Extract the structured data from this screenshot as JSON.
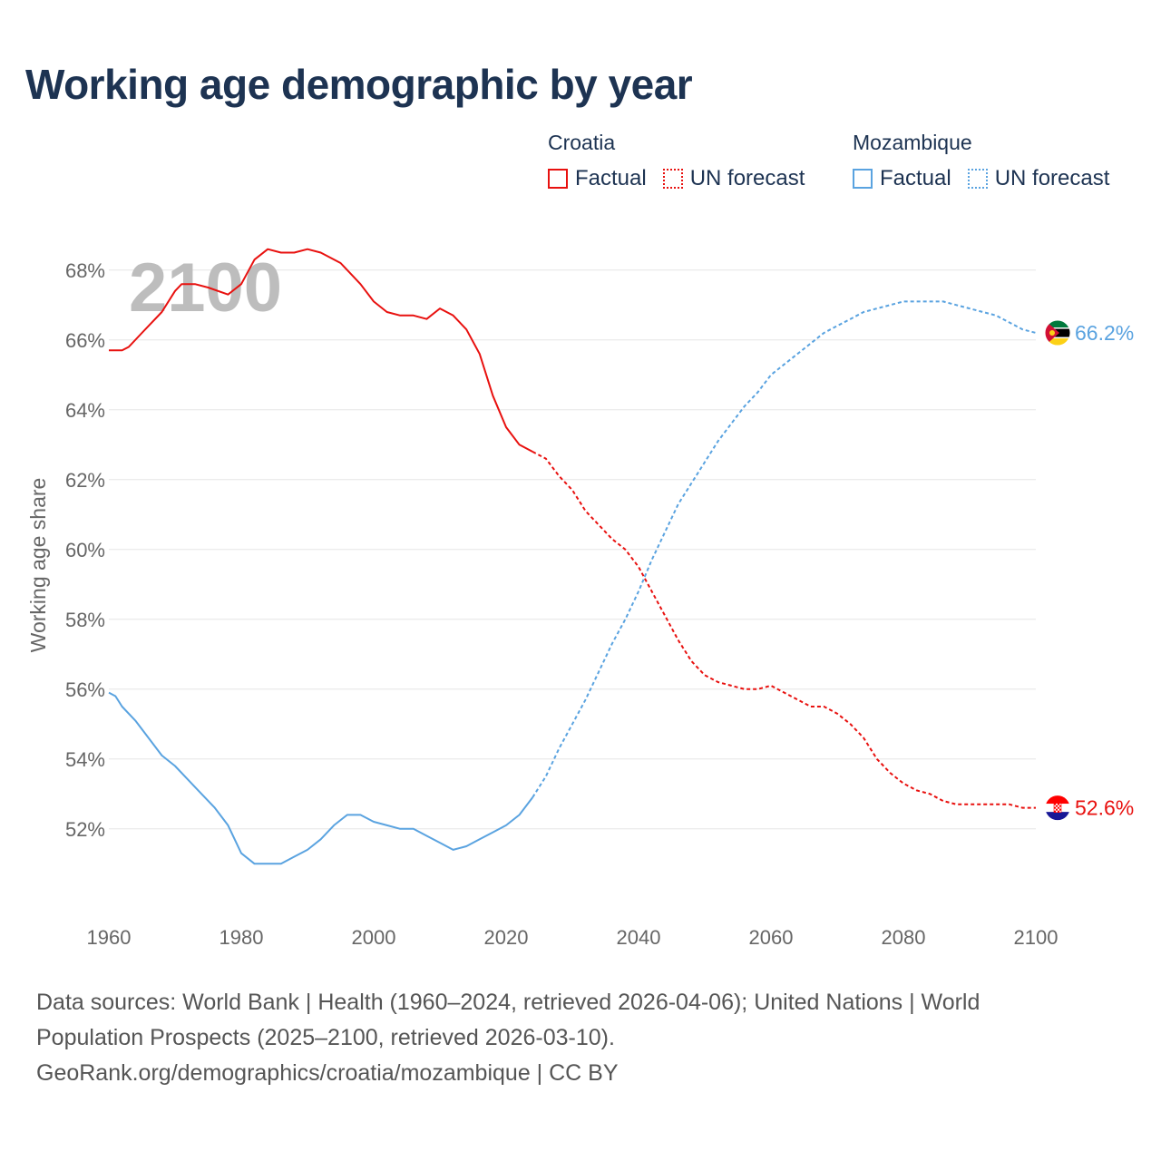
{
  "title": "Working age demographic by year",
  "legend": {
    "groups": [
      {
        "name": "Croatia",
        "factual": "Factual",
        "forecast": "UN forecast"
      },
      {
        "name": "Mozambique",
        "factual": "Factual",
        "forecast": "UN forecast"
      }
    ]
  },
  "year_label": "2100",
  "end_labels": {
    "mozambique": "66.2%",
    "croatia": "52.6%"
  },
  "colors": {
    "croatia": "#e8110f",
    "mozambique": "#5aa3e0",
    "title": "#1d3352"
  },
  "footer": {
    "line1": "Data sources: World Bank | Health (1960–2024, retrieved 2026-04-06); United Nations | World",
    "line2": "Population Prospects (2025–2100, retrieved 2026-03-10).",
    "line3": "GeoRank.org/demographics/croatia/mozambique | CC BY"
  },
  "chart_data": {
    "type": "line",
    "title": "Working age demographic by year",
    "xlabel": "",
    "ylabel": "Working age share",
    "xlim": [
      1960,
      2100
    ],
    "ylim": [
      49.5,
      69.5
    ],
    "x_ticks": [
      1960,
      1980,
      2000,
      2020,
      2040,
      2060,
      2080,
      2100
    ],
    "y_ticks": [
      52,
      54,
      56,
      58,
      60,
      62,
      64,
      66,
      68
    ],
    "series": [
      {
        "name": "Croatia",
        "segment": "Factual",
        "x": [
          1960,
          1962,
          1963,
          1965,
          1968,
          1970,
          1971,
          1973,
          1975,
          1978,
          1980,
          1982,
          1984,
          1986,
          1988,
          1990,
          1992,
          1995,
          1998,
          2000,
          2002,
          2004,
          2006,
          2008,
          2010,
          2012,
          2014,
          2016,
          2018,
          2020,
          2022,
          2024
        ],
        "y": [
          65.7,
          65.7,
          65.8,
          66.2,
          66.8,
          67.4,
          67.6,
          67.6,
          67.5,
          67.3,
          67.6,
          68.3,
          68.6,
          68.5,
          68.5,
          68.6,
          68.5,
          68.2,
          67.6,
          67.1,
          66.8,
          66.7,
          66.7,
          66.6,
          66.9,
          66.7,
          66.3,
          65.6,
          64.4,
          63.5,
          63.0,
          62.8
        ]
      },
      {
        "name": "Croatia",
        "segment": "UN forecast",
        "x": [
          2024,
          2026,
          2028,
          2030,
          2032,
          2034,
          2036,
          2038,
          2040,
          2042,
          2044,
          2046,
          2048,
          2050,
          2052,
          2054,
          2056,
          2058,
          2060,
          2062,
          2064,
          2066,
          2068,
          2070,
          2072,
          2074,
          2076,
          2078,
          2080,
          2082,
          2084,
          2086,
          2088,
          2090,
          2092,
          2094,
          2096,
          2098,
          2100
        ],
        "y": [
          62.8,
          62.6,
          62.1,
          61.7,
          61.1,
          60.7,
          60.3,
          60.0,
          59.5,
          58.8,
          58.1,
          57.4,
          56.8,
          56.4,
          56.2,
          56.1,
          56.0,
          56.0,
          56.1,
          55.9,
          55.7,
          55.5,
          55.5,
          55.3,
          55.0,
          54.6,
          54.0,
          53.6,
          53.3,
          53.1,
          53.0,
          52.8,
          52.7,
          52.7,
          52.7,
          52.7,
          52.7,
          52.6,
          52.6
        ]
      },
      {
        "name": "Mozambique",
        "segment": "Factual",
        "x": [
          1960,
          1961,
          1962,
          1964,
          1966,
          1968,
          1970,
          1972,
          1974,
          1976,
          1978,
          1980,
          1982,
          1984,
          1986,
          1988,
          1990,
          1992,
          1994,
          1996,
          1998,
          2000,
          2002,
          2004,
          2006,
          2008,
          2010,
          2012,
          2014,
          2016,
          2018,
          2020,
          2022,
          2024
        ],
        "y": [
          55.9,
          55.8,
          55.5,
          55.1,
          54.6,
          54.1,
          53.8,
          53.4,
          53.0,
          52.6,
          52.1,
          51.3,
          51.0,
          51.0,
          51.0,
          51.2,
          51.4,
          51.7,
          52.1,
          52.4,
          52.4,
          52.2,
          52.1,
          52.0,
          52.0,
          51.8,
          51.6,
          51.4,
          51.5,
          51.7,
          51.9,
          52.1,
          52.4,
          52.9
        ]
      },
      {
        "name": "Mozambique",
        "segment": "UN forecast",
        "x": [
          2024,
          2026,
          2028,
          2030,
          2032,
          2034,
          2036,
          2038,
          2040,
          2042,
          2044,
          2046,
          2048,
          2050,
          2052,
          2054,
          2056,
          2058,
          2060,
          2062,
          2064,
          2066,
          2068,
          2070,
          2072,
          2074,
          2076,
          2078,
          2080,
          2082,
          2084,
          2086,
          2088,
          2090,
          2092,
          2094,
          2096,
          2098,
          2100
        ],
        "y": [
          52.9,
          53.5,
          54.3,
          55.0,
          55.7,
          56.5,
          57.3,
          58.0,
          58.8,
          59.7,
          60.5,
          61.3,
          61.9,
          62.5,
          63.1,
          63.6,
          64.1,
          64.5,
          65.0,
          65.3,
          65.6,
          65.9,
          66.2,
          66.4,
          66.6,
          66.8,
          66.9,
          67.0,
          67.1,
          67.1,
          67.1,
          67.1,
          67.0,
          66.9,
          66.8,
          66.7,
          66.5,
          66.3,
          66.2
        ]
      }
    ]
  }
}
